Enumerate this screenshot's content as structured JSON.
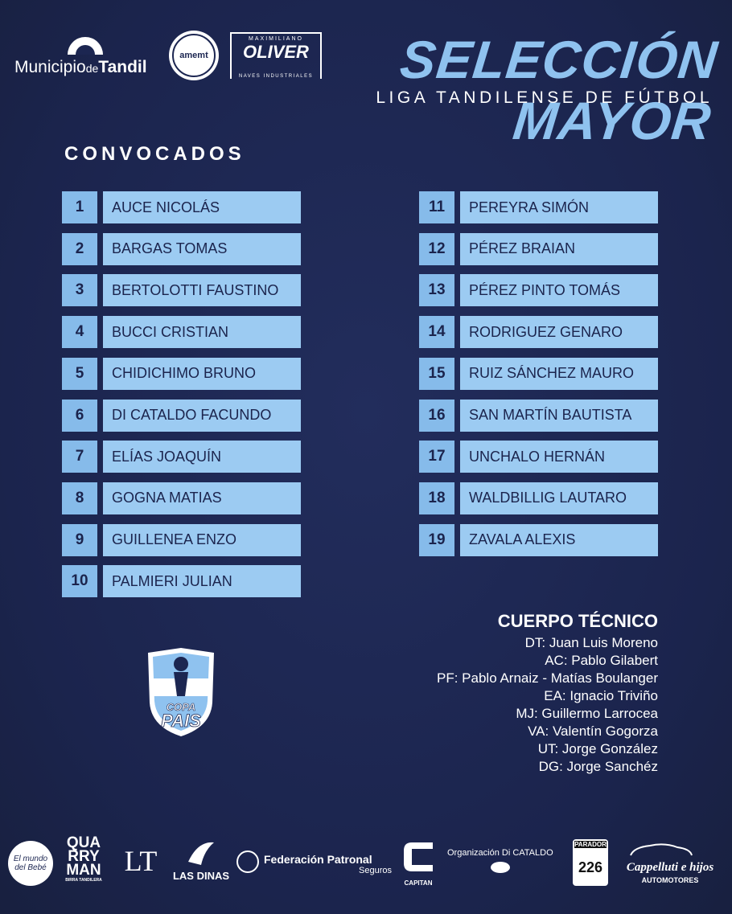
{
  "header": {
    "logos": {
      "municipio": [
        "Municipio",
        "de",
        "Tandil"
      ],
      "amemt": "amemt",
      "oliver": {
        "top": "MAXIMILIANO",
        "name": "OLIVER",
        "bottom": "NAVES INDUSTRIALES"
      }
    },
    "title": "SELECCIÓN MAYOR",
    "subtitle": "LIGA TANDILENSE DE FÚTBOL"
  },
  "squad": {
    "heading": "CONVOCADOS",
    "players": [
      {
        "number": 1,
        "name": "AUCE NICOLÁS"
      },
      {
        "number": 2,
        "name": "BARGAS TOMAS"
      },
      {
        "number": 3,
        "name": "BERTOLOTTI FAUSTINO"
      },
      {
        "number": 4,
        "name": "BUCCI CRISTIAN"
      },
      {
        "number": 5,
        "name": "CHIDICHIMO BRUNO"
      },
      {
        "number": 6,
        "name": "DI CATALDO FACUNDO"
      },
      {
        "number": 7,
        "name": "ELÍAS JOAQUÍN"
      },
      {
        "number": 8,
        "name": "GOGNA MATIAS"
      },
      {
        "number": 9,
        "name": "GUILLENEA ENZO"
      },
      {
        "number": 10,
        "name": "PALMIERI JULIAN"
      },
      {
        "number": 11,
        "name": "PEREYRA SIMÓN"
      },
      {
        "number": 12,
        "name": "PÉREZ BRAIAN"
      },
      {
        "number": 13,
        "name": "PÉREZ PINTO TOMÁS"
      },
      {
        "number": 14,
        "name": "RODRIGUEZ GENARO"
      },
      {
        "number": 15,
        "name": "RUIZ SÁNCHEZ MAURO"
      },
      {
        "number": 16,
        "name": "SAN MARTÍN BAUTISTA"
      },
      {
        "number": 17,
        "name": "UNCHALO HERNÁN"
      },
      {
        "number": 18,
        "name": "WALDBILLIG LAUTARO"
      },
      {
        "number": 19,
        "name": "ZAVALA ALEXIS"
      }
    ]
  },
  "staff": {
    "heading": "CUERPO TÉCNICO",
    "members": [
      "DT: Juan Luis Moreno",
      "AC: Pablo Gilabert",
      "PF: Pablo Arnaiz - Matías Boulanger",
      "EA: Ignacio Triviño",
      "MJ: Guillermo Larrocea",
      "VA: Valentín Gogorza",
      "UT: Jorge González",
      "DG: Jorge Sanchéz"
    ]
  },
  "copa_logo": [
    "COPA",
    "PAIS"
  ],
  "sponsors": {
    "mundo_bebe": [
      "El mundo",
      "del Bebé"
    ],
    "quarryman": [
      "QUA",
      "RRY",
      "MAN",
      "BIRRA TANDILERA"
    ],
    "lt": "LT",
    "las_dinas": "LAS DINAS",
    "federacion": [
      "Federación Patronal",
      "Seguros"
    ],
    "capitan": "CAPITAN",
    "di_cataldo": "Organización Di CATALDO",
    "parador": [
      "PARADOR",
      "226"
    ],
    "cappelluti": [
      "Cappelluti e hijos",
      "AUTOMOTORES"
    ]
  }
}
